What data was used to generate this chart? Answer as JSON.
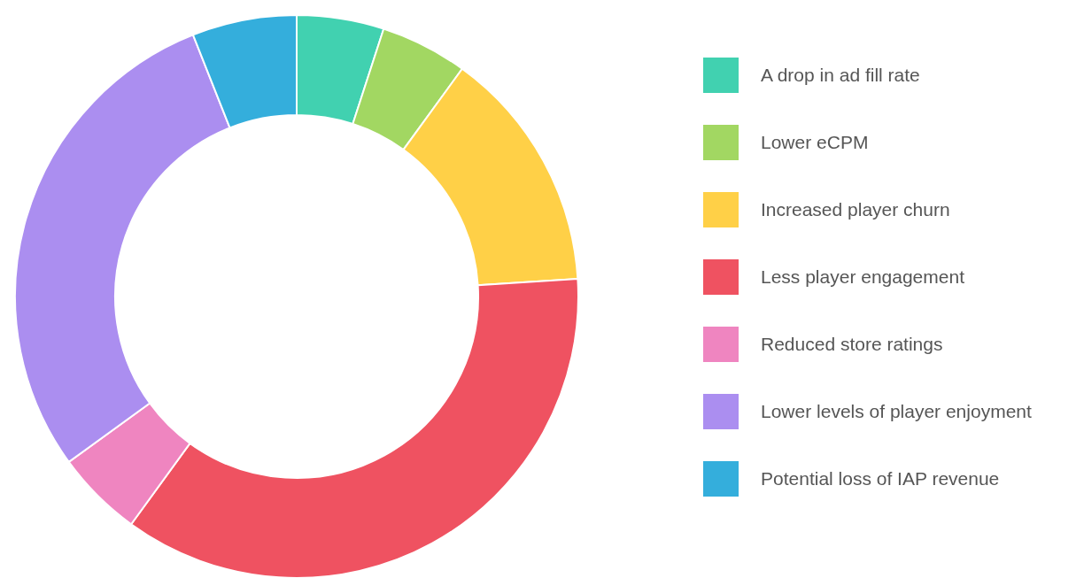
{
  "chart_data": {
    "type": "donut",
    "categories": [
      "A drop in ad fill rate",
      "Lower eCPM",
      "Increased player churn",
      "Less player engagement",
      "Reduced store ratings",
      "Lower levels of player enjoyment",
      "Potential loss of IAP revenue"
    ],
    "values": [
      5,
      5,
      14,
      36,
      5,
      29,
      6
    ],
    "colors": [
      "#41d1b0",
      "#a2d762",
      "#ffd047",
      "#ef5261",
      "#ef85c0",
      "#ab8ef0",
      "#34aedc"
    ],
    "legend": "right"
  }
}
